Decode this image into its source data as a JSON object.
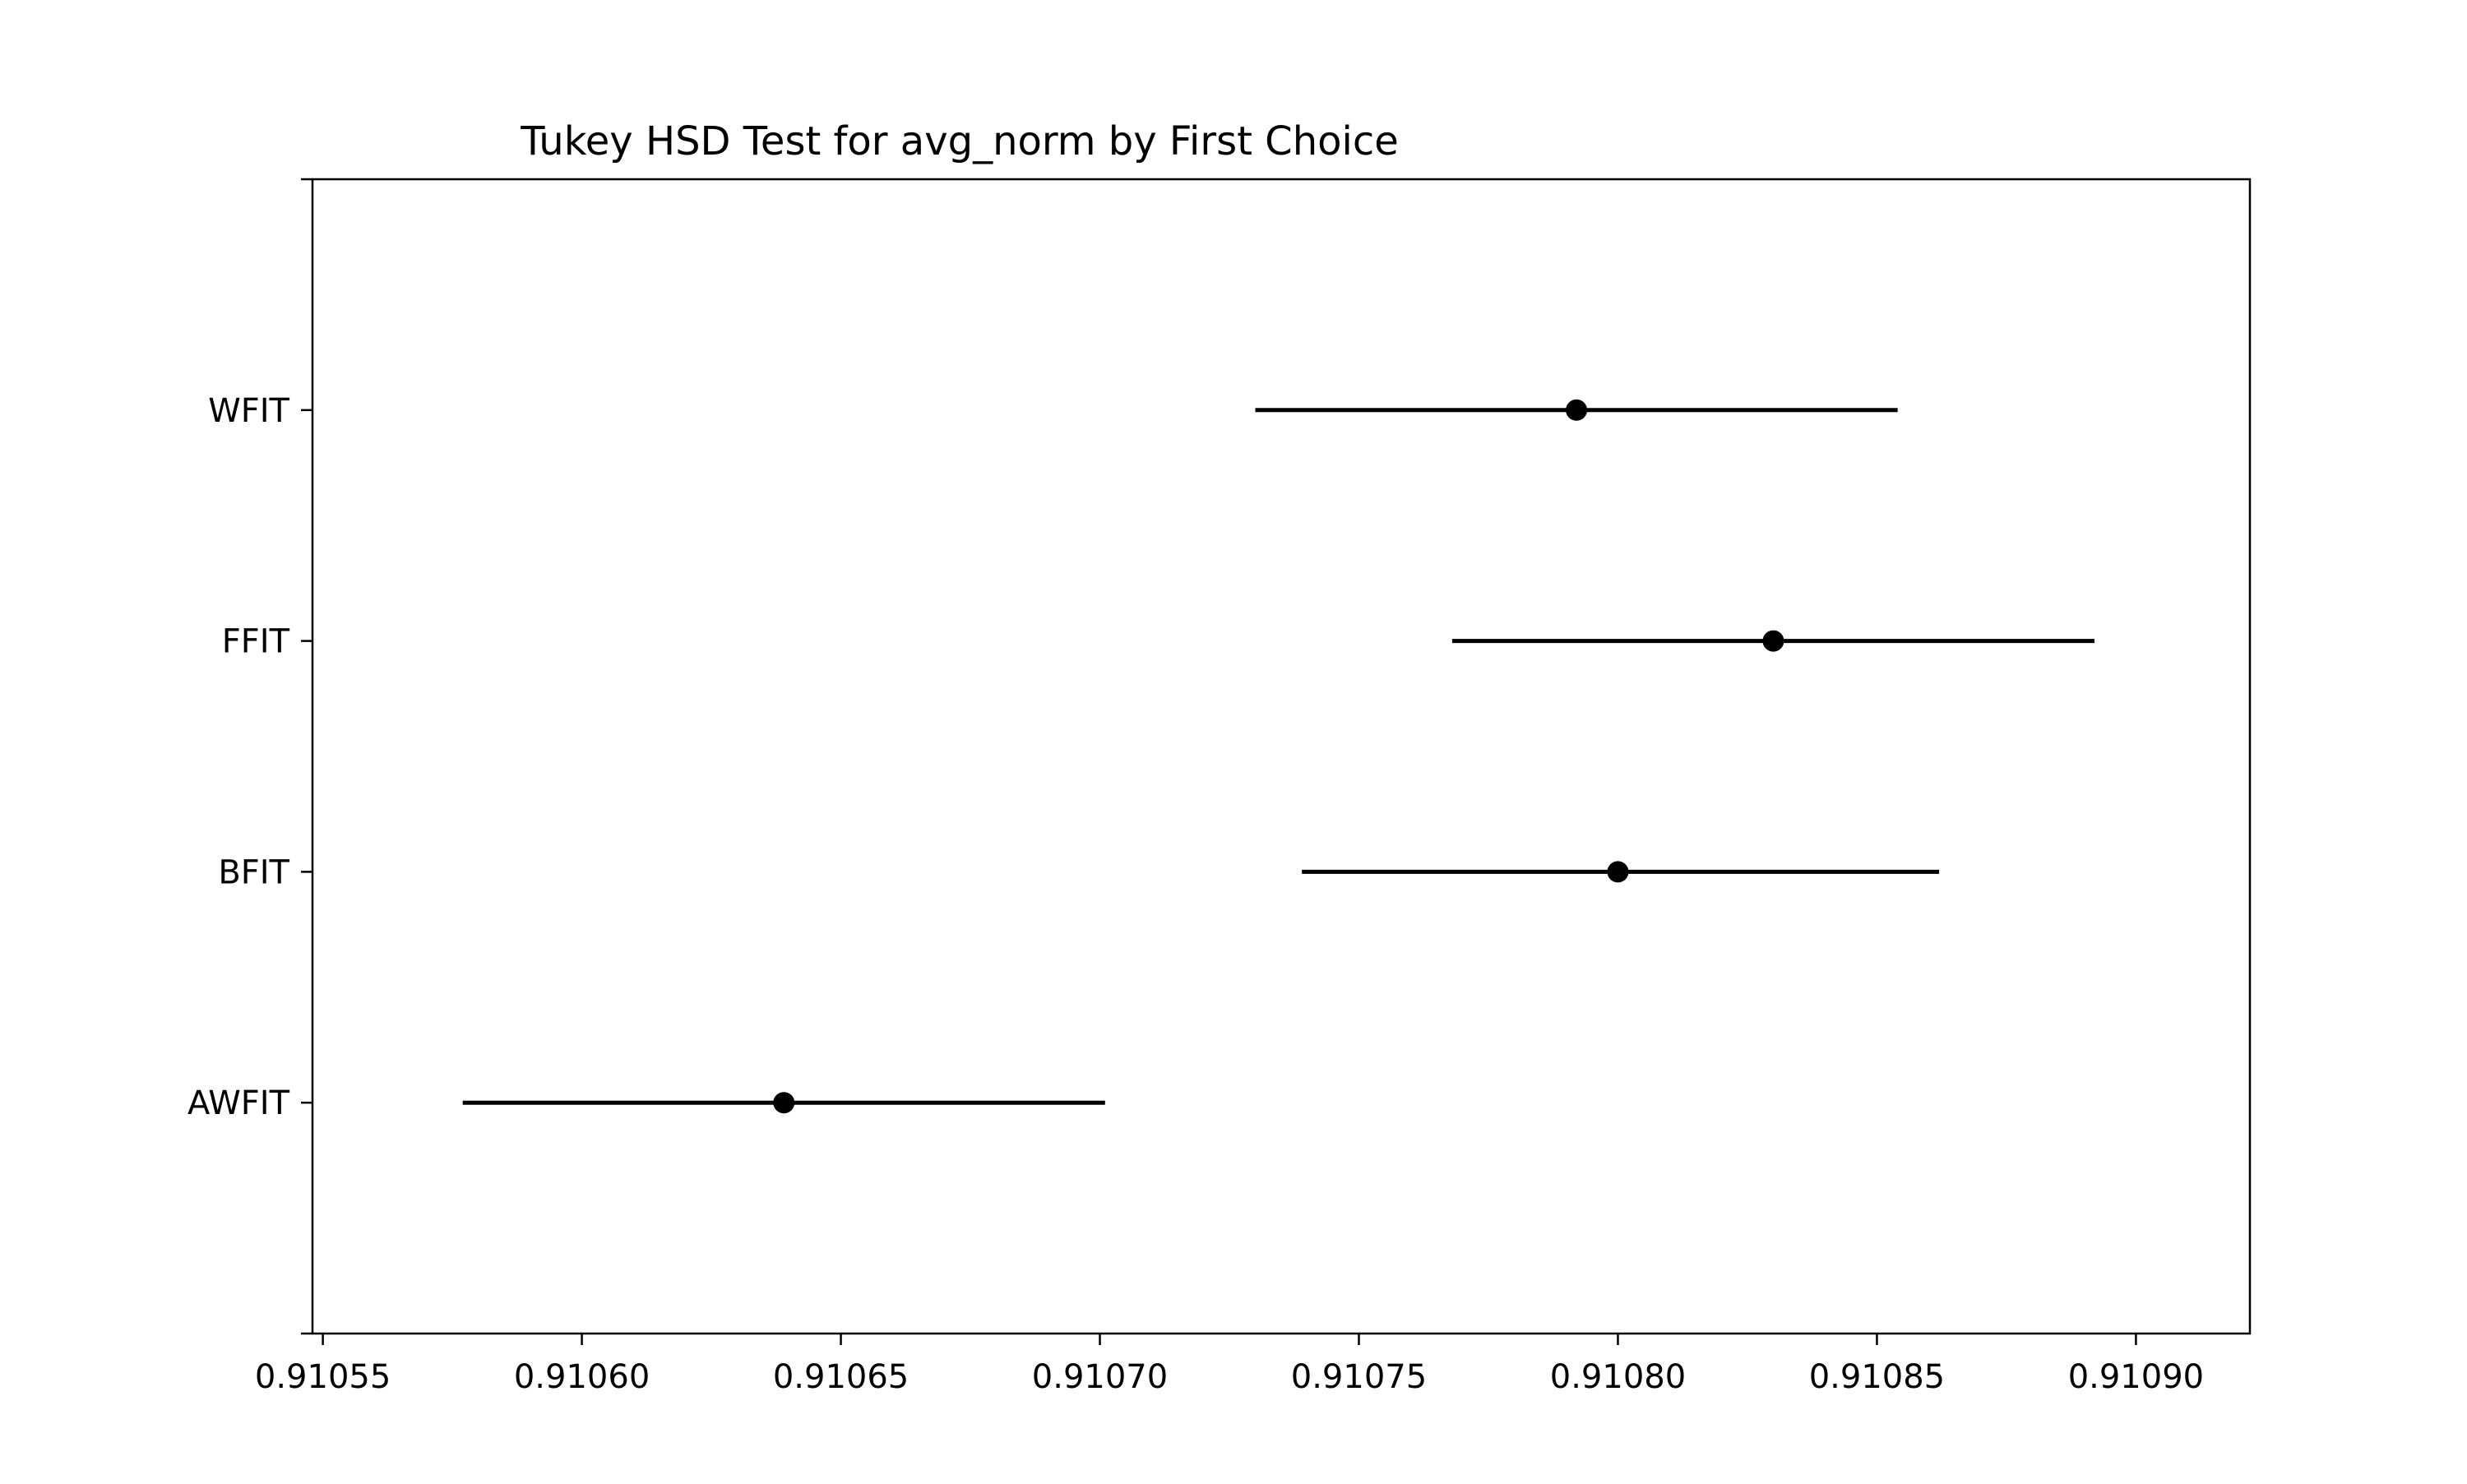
{
  "chart_data": {
    "type": "interval",
    "title": "Tukey HSD Test for avg_norm by First Choice",
    "xlabel": "",
    "ylabel": "",
    "x_ticks": [
      "0.91055",
      "0.91060",
      "0.91065",
      "0.91070",
      "0.91075",
      "0.91080",
      "0.91085",
      "0.91090"
    ],
    "x_tick_values": [
      0.91055,
      0.9106,
      0.91065,
      0.9107,
      0.91075,
      0.9108,
      0.91085,
      0.9109
    ],
    "xlim": [
      0.910548,
      0.910922
    ],
    "categories": [
      "WFIT",
      "FFIT",
      "BFIT",
      "AWFIT"
    ],
    "series": [
      {
        "points": [
          {
            "label": "WFIT",
            "mean": 0.910792,
            "lower": 0.91073,
            "upper": 0.910854
          },
          {
            "label": "FFIT",
            "mean": 0.91083,
            "lower": 0.910768,
            "upper": 0.910892
          },
          {
            "label": "BFIT",
            "mean": 0.9108,
            "lower": 0.910739,
            "upper": 0.910862
          },
          {
            "label": "AWFIT",
            "mean": 0.910639,
            "lower": 0.910577,
            "upper": 0.910701
          }
        ]
      }
    ],
    "grid": false,
    "legend": "none",
    "marker_color": "#000000",
    "line_color": "#000000"
  }
}
